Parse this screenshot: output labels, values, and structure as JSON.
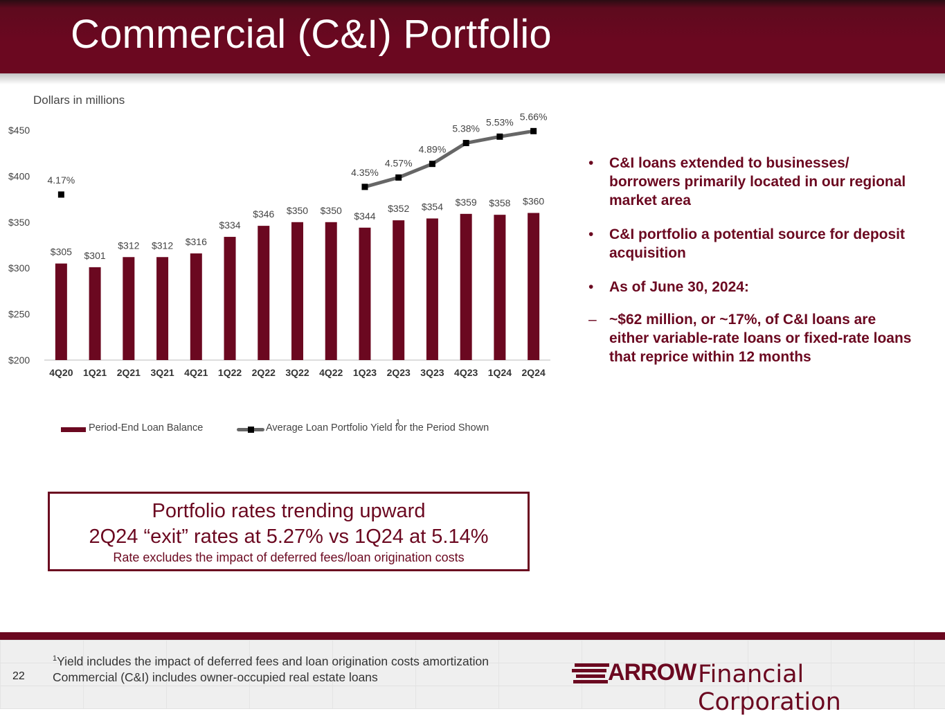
{
  "header": {
    "title": "Commercial (C&I) Portfolio"
  },
  "chart_units_label": "Dollars in millions",
  "chart_data": {
    "type": "bar+line",
    "categories": [
      "4Q20",
      "1Q21",
      "2Q21",
      "3Q21",
      "4Q21",
      "1Q22",
      "2Q22",
      "3Q22",
      "4Q22",
      "1Q23",
      "2Q23",
      "3Q23",
      "4Q23",
      "1Q24",
      "2Q24"
    ],
    "series": [
      {
        "name": "Period-End Loan Balance",
        "type": "bar",
        "values": [
          305,
          301,
          312,
          312,
          316,
          334,
          346,
          350,
          350,
          344,
          352,
          354,
          359,
          358,
          360
        ],
        "labels": [
          "$305",
          "$301",
          "$312",
          "$312",
          "$316",
          "$334",
          "$346",
          "$350",
          "$350",
          "$344",
          "$352",
          "$354",
          "$359",
          "$358",
          "$360"
        ]
      },
      {
        "name": "Average Loan Portfolio Yield for the Period Shown",
        "superscript": "1",
        "type": "line",
        "values": [
          4.17,
          null,
          null,
          null,
          null,
          null,
          null,
          null,
          null,
          4.35,
          4.57,
          4.89,
          5.38,
          5.53,
          5.66
        ],
        "labels": [
          "4.17%",
          "",
          "",
          "",
          "",
          "",
          "",
          "",
          "",
          "4.35%",
          "4.57%",
          "4.89%",
          "5.38%",
          "5.53%",
          "5.66%"
        ]
      }
    ],
    "ylim": [
      200,
      450
    ],
    "yticks": [
      200,
      250,
      300,
      350,
      400,
      450
    ],
    "ytick_labels": [
      "$200",
      "$250",
      "$300",
      "$350",
      "$400",
      "$450"
    ],
    "legend_position": "bottom",
    "colors": {
      "bar": "#6b0820",
      "line": "#666666",
      "marker": "#000000"
    }
  },
  "legend": {
    "bar_label": "Period-End Loan Balance",
    "line_label": "Average Loan Portfolio Yield for the Period Shown",
    "line_sup": "1"
  },
  "bullets": [
    {
      "mark": "•",
      "text": "C&I loans extended to businesses/ borrowers primarily located in our regional market area"
    },
    {
      "mark": "•",
      "text": "C&I portfolio a potential source for deposit acquisition"
    },
    {
      "mark": "•",
      "text": "As of June 30, 2024:"
    },
    {
      "mark": "–",
      "text": "~$62 million, or ~17%,  of C&I loans are either variable-rate loans or fixed-rate loans that reprice within 12 months"
    }
  ],
  "callout": {
    "line1": "Portfolio rates trending upward",
    "line2": "2Q24 “exit” rates at 5.27% vs 1Q24 at 5.14%",
    "line3": "Rate excludes the impact of deferred fees/loan origination costs"
  },
  "footer": {
    "page_number": "22",
    "footnote_sup": "1",
    "footnote1": "Yield includes the impact of deferred fees and loan origination costs amortization",
    "footnote2": "Commercial (C&I) includes owner-occupied real estate loans",
    "logo_brand": "ARROW",
    "logo_rest": "Financial Corporation"
  },
  "colors": {
    "brand": "#6b0820"
  }
}
